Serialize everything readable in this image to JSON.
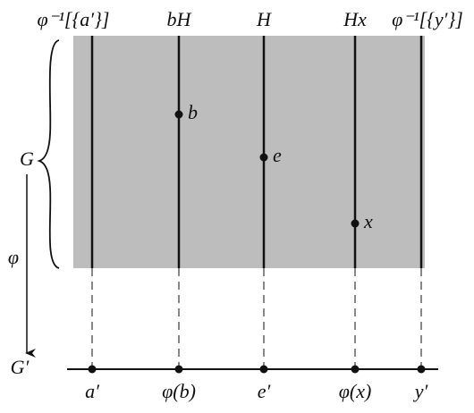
{
  "group_label": "G",
  "image_group_label": "G′",
  "map_label": "φ",
  "fibers": [
    {
      "top": "φ⁻¹[{a′}]",
      "bottom": "a′"
    },
    {
      "top": "bH",
      "bottom": "φ(b)"
    },
    {
      "top": "H",
      "bottom": "e′"
    },
    {
      "top": "Hx",
      "bottom": "φ(x)"
    },
    {
      "top": "φ⁻¹[{y′}]",
      "bottom": "y′"
    }
  ],
  "points": [
    {
      "label": "b"
    },
    {
      "label": "e"
    },
    {
      "label": "x"
    }
  ]
}
